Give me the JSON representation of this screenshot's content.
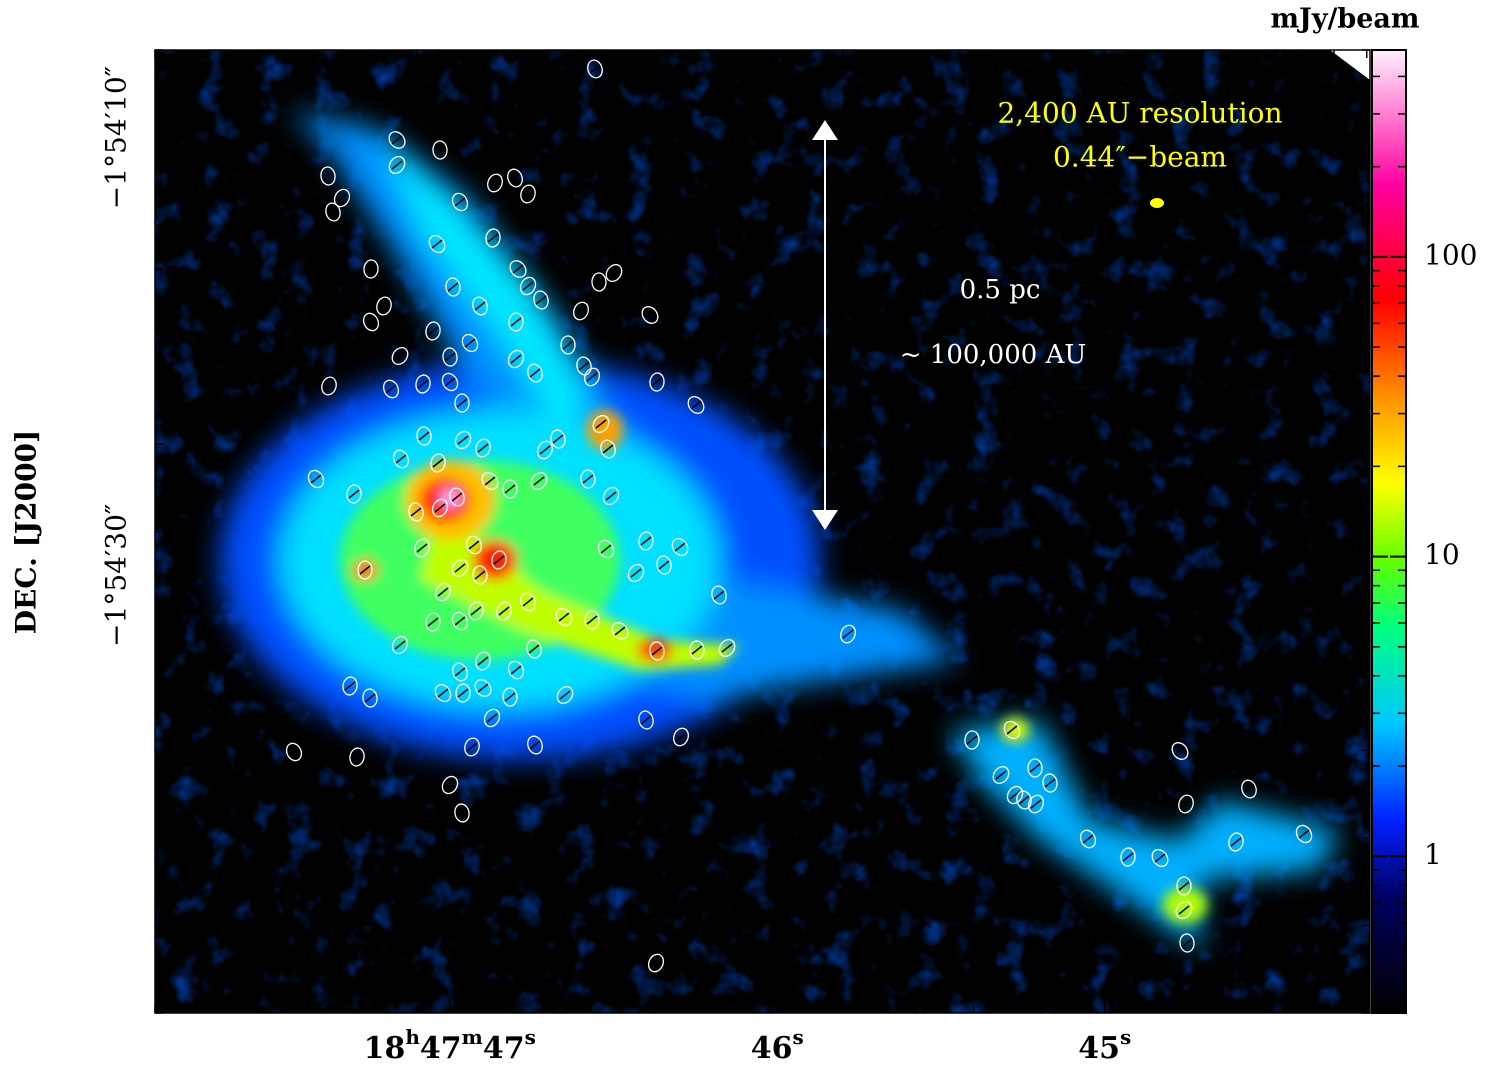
{
  "chart_data": {
    "type": "image",
    "ylabel": "DEC. [J2000]",
    "xlim": [
      47.9,
      44.19
    ],
    "xticks": [
      {
        "value": 47,
        "label": "18h47m47s"
      },
      {
        "value": 46,
        "label": "46s"
      },
      {
        "value": 45,
        "label": "45s"
      }
    ],
    "ylim": [
      6,
      50
    ],
    "yticks": [
      {
        "value": 10,
        "label": "−1°54′10″"
      },
      {
        "value": 30,
        "label": "−1°54′30″"
      }
    ],
    "colorbar": {
      "label": "mJy/beam",
      "log": true,
      "zlim": [
        0.3,
        490
      ],
      "ticks": [
        1,
        10,
        100
      ]
    },
    "annotations": [
      "2,400 AU resolution",
      "0.44″−beam",
      "0.5 pc",
      "~ 100,000 AU"
    ]
  }
}
